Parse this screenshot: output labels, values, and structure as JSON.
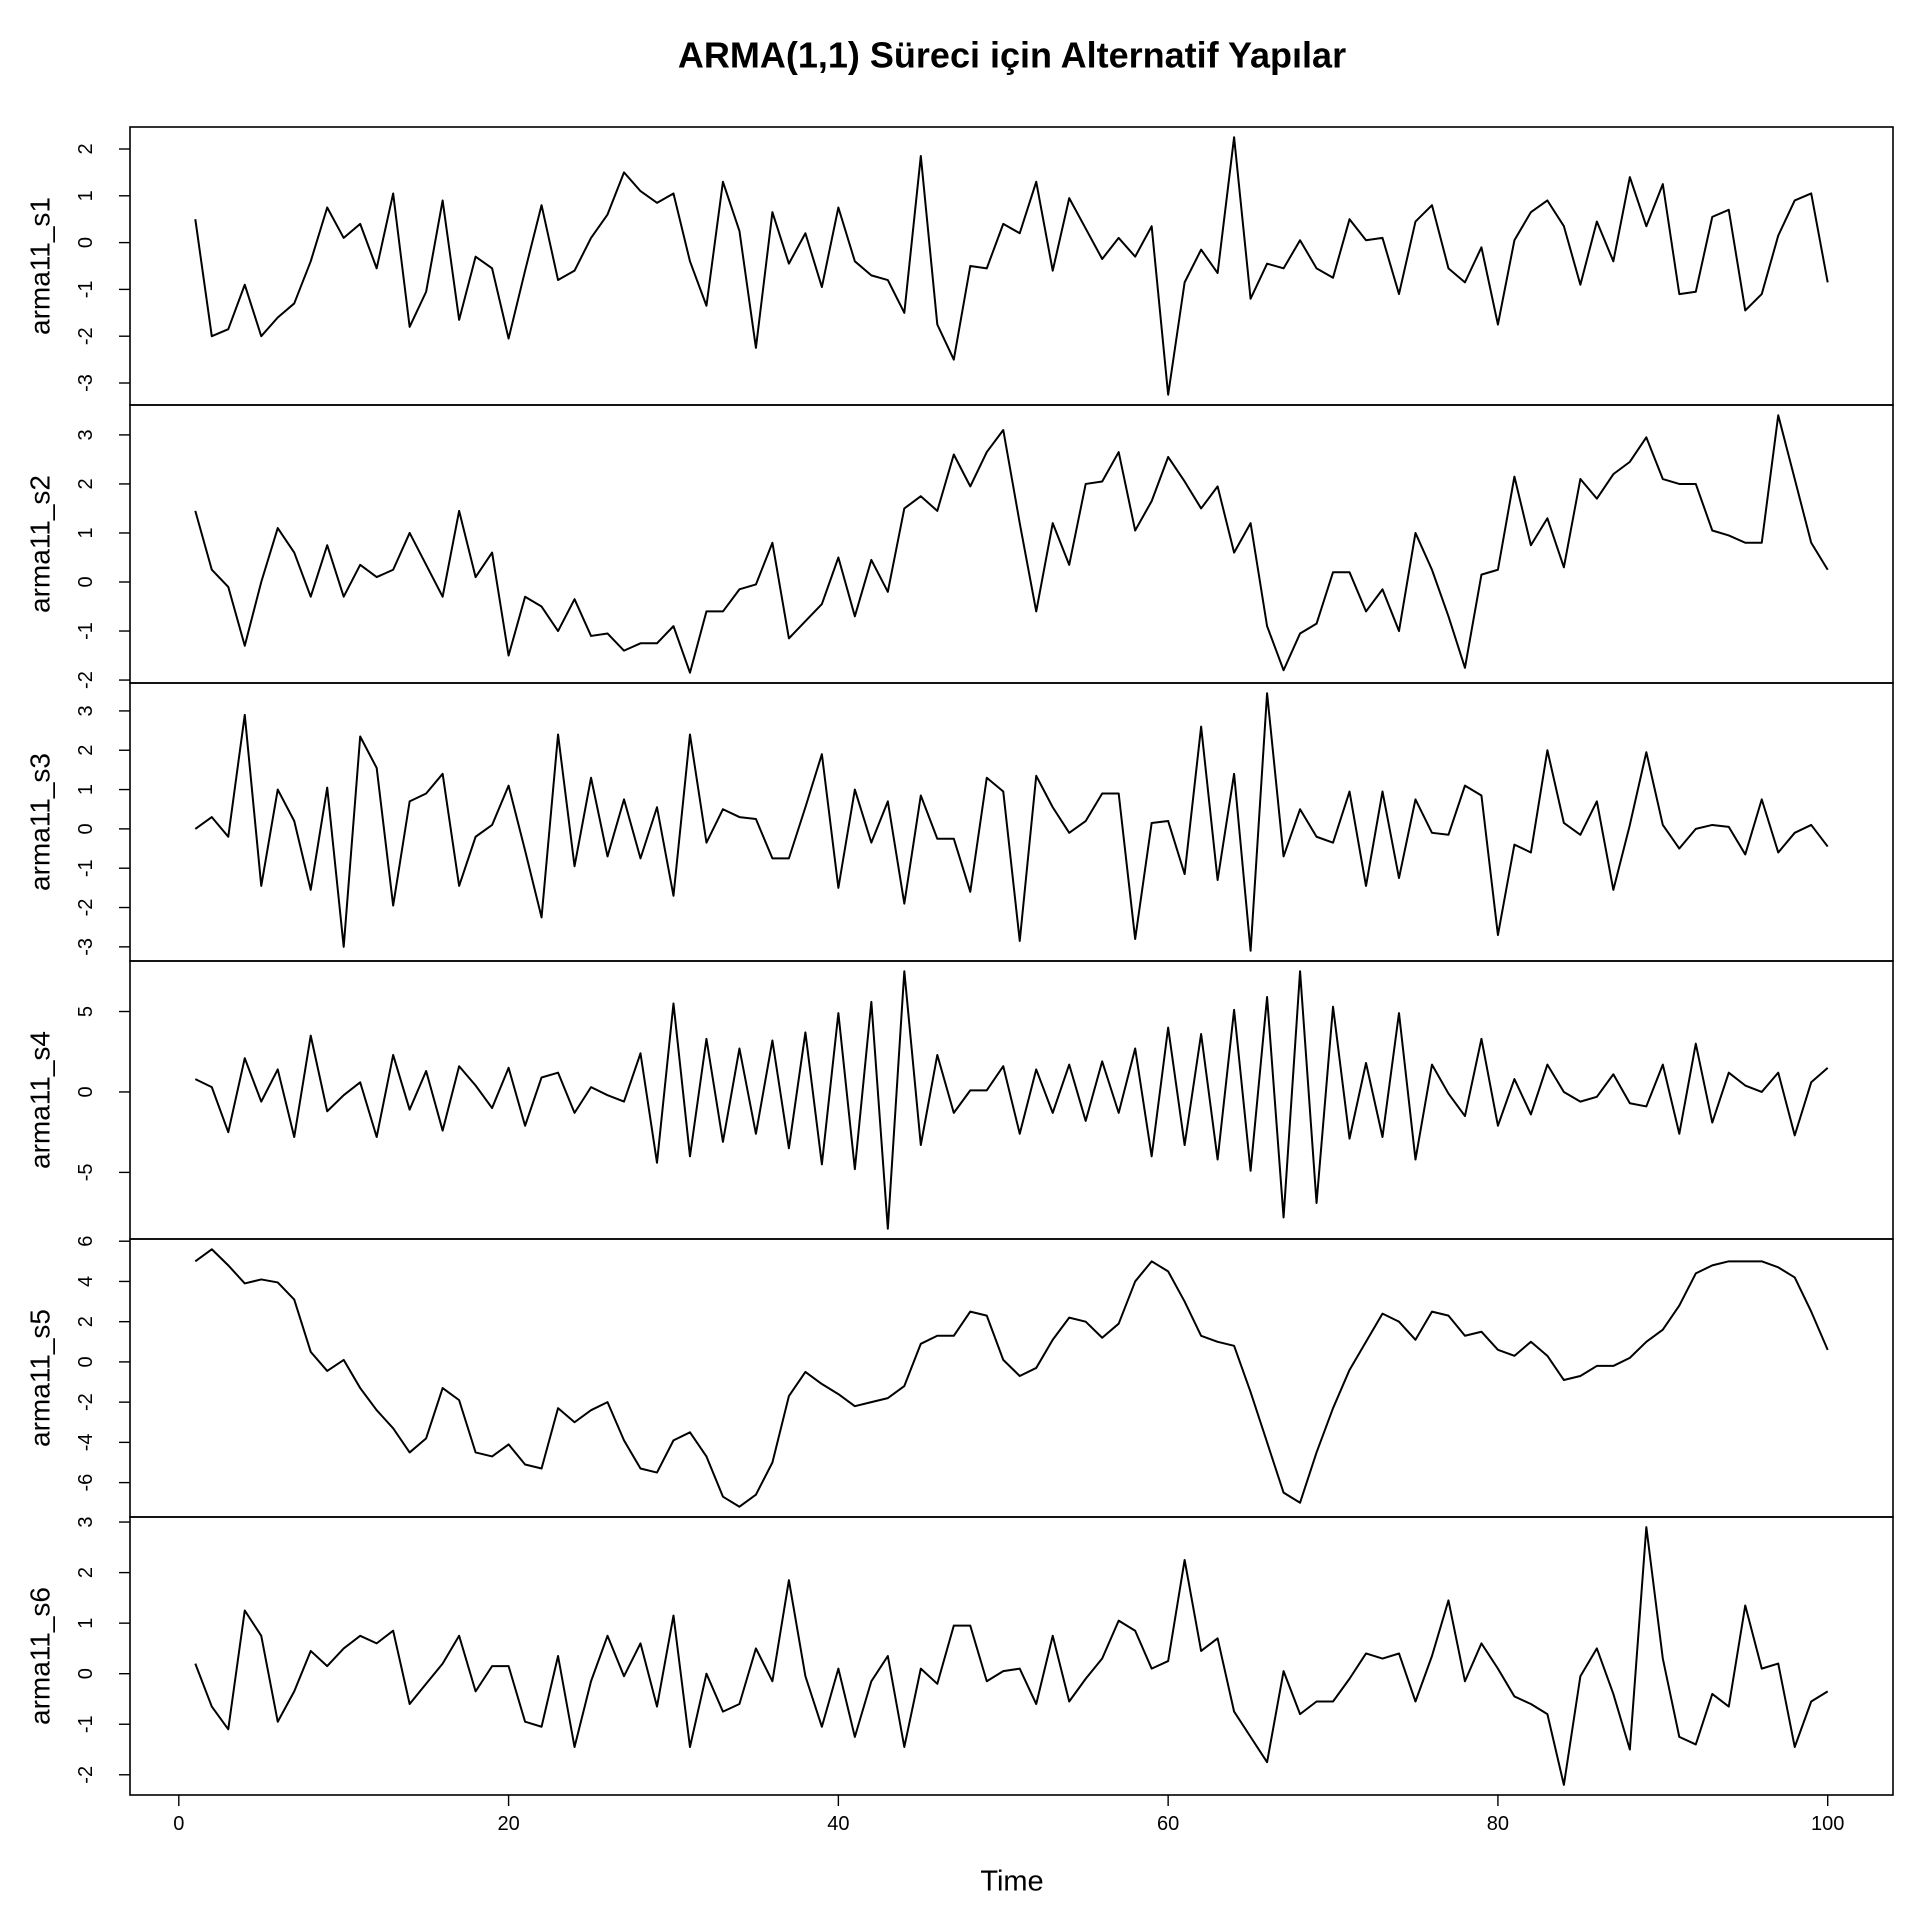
{
  "chart_data": {
    "type": "line",
    "title": "ARMA(1,1) Süreci için Alternatif Yapılar",
    "xlabel": "Time",
    "x": [
      1,
      2,
      3,
      4,
      5,
      6,
      7,
      8,
      9,
      10,
      11,
      12,
      13,
      14,
      15,
      16,
      17,
      18,
      19,
      20,
      21,
      22,
      23,
      24,
      25,
      26,
      27,
      28,
      29,
      30,
      31,
      32,
      33,
      34,
      35,
      36,
      37,
      38,
      39,
      40,
      41,
      42,
      43,
      44,
      45,
      46,
      47,
      48,
      49,
      50,
      51,
      52,
      53,
      54,
      55,
      56,
      57,
      58,
      59,
      60,
      61,
      62,
      63,
      64,
      65,
      66,
      67,
      68,
      69,
      70,
      71,
      72,
      73,
      74,
      75,
      76,
      77,
      78,
      79,
      80,
      81,
      82,
      83,
      84,
      85,
      86,
      87,
      88,
      89,
      90,
      91,
      92,
      93,
      94,
      95,
      96,
      97,
      98,
      99,
      100
    ],
    "xlim": [
      -2.96,
      103.96
    ],
    "xticks": [
      0,
      20,
      40,
      60,
      80,
      100
    ],
    "series": [
      {
        "name": "arma11_s1",
        "color": "#000000",
        "ylim": [
          -3.47,
          2.47
        ],
        "yticks": [
          -3,
          -2,
          -1,
          0,
          1,
          2
        ],
        "values": [
          0.5,
          -2.0,
          -1.85,
          -0.9,
          -2.0,
          -1.6,
          -1.3,
          -0.4,
          0.75,
          0.1,
          0.4,
          -0.55,
          1.05,
          -1.8,
          -1.05,
          0.9,
          -1.65,
          -0.3,
          -0.55,
          -2.05,
          -0.6,
          0.8,
          -0.8,
          -0.6,
          0.1,
          0.6,
          1.5,
          1.1,
          0.85,
          1.05,
          -0.4,
          -1.35,
          1.3,
          0.25,
          -2.25,
          0.65,
          -0.45,
          0.2,
          -0.95,
          0.75,
          -0.4,
          -0.7,
          -0.8,
          -1.5,
          1.85,
          -1.75,
          -2.5,
          -0.5,
          -0.55,
          0.4,
          0.2,
          1.3,
          -0.6,
          0.95,
          0.3,
          -0.35,
          0.1,
          -0.3,
          0.35,
          -3.25,
          -0.85,
          -0.15,
          -0.65,
          2.25,
          -1.2,
          -0.45,
          -0.55,
          0.05,
          -0.55,
          -0.75,
          0.5,
          0.05,
          0.1,
          -1.1,
          0.45,
          0.8,
          -0.55,
          -0.85,
          -0.1,
          -1.75,
          0.05,
          0.65,
          0.9,
          0.35,
          -0.9,
          0.45,
          -0.4,
          1.4,
          0.35,
          1.25,
          -1.1,
          -1.05,
          0.55,
          0.7,
          -1.45,
          -1.1,
          0.15,
          0.9,
          1.05,
          -0.85
        ]
      },
      {
        "name": "arma11_s2",
        "color": "#000000",
        "ylim": [
          -2.06,
          3.61
        ],
        "yticks": [
          -2,
          -1,
          0,
          1,
          2,
          3
        ],
        "values": [
          1.45,
          0.25,
          -0.1,
          -1.3,
          0.0,
          1.1,
          0.6,
          -0.3,
          0.75,
          -0.3,
          0.35,
          0.1,
          0.25,
          1.0,
          0.35,
          -0.3,
          1.45,
          0.1,
          0.6,
          -1.5,
          -0.3,
          -0.5,
          -1.0,
          -0.35,
          -1.1,
          -1.05,
          -1.4,
          -1.25,
          -1.25,
          -0.9,
          -1.85,
          -0.6,
          -0.6,
          -0.15,
          -0.05,
          0.8,
          -1.15,
          -0.8,
          -0.45,
          0.5,
          -0.7,
          0.45,
          -0.2,
          1.5,
          1.75,
          1.45,
          2.6,
          1.95,
          2.65,
          3.1,
          1.2,
          -0.6,
          1.2,
          0.35,
          2.0,
          2.05,
          2.65,
          1.05,
          1.65,
          2.55,
          2.05,
          1.5,
          1.95,
          0.6,
          1.2,
          -0.9,
          -1.8,
          -1.05,
          -0.85,
          0.2,
          0.2,
          -0.6,
          -0.15,
          -1.0,
          1.0,
          0.25,
          -0.7,
          -1.75,
          0.15,
          0.25,
          2.15,
          0.75,
          1.3,
          0.3,
          2.1,
          1.7,
          2.2,
          2.45,
          2.95,
          2.1,
          2.0,
          2.0,
          1.05,
          0.95,
          0.8,
          0.8,
          3.4,
          2.1,
          0.8,
          0.25
        ]
      },
      {
        "name": "arma11_s3",
        "color": "#000000",
        "ylim": [
          -3.36,
          3.71
        ],
        "yticks": [
          -3,
          -2,
          -1,
          0,
          1,
          2,
          3
        ],
        "values": [
          0.0,
          0.3,
          -0.2,
          2.9,
          -1.45,
          1.0,
          0.2,
          -1.55,
          1.05,
          -3.0,
          2.35,
          1.55,
          -1.95,
          0.7,
          0.9,
          1.4,
          -1.45,
          -0.2,
          0.1,
          1.1,
          -0.55,
          -2.25,
          2.4,
          -0.95,
          1.3,
          -0.7,
          0.75,
          -0.75,
          0.55,
          -1.7,
          2.4,
          -0.35,
          0.5,
          0.3,
          0.25,
          -0.75,
          -0.75,
          0.55,
          1.9,
          -1.5,
          1.0,
          -0.35,
          0.7,
          -1.9,
          0.85,
          -0.25,
          -0.25,
          -1.6,
          1.3,
          0.95,
          -2.85,
          1.35,
          0.55,
          -0.1,
          0.2,
          0.9,
          0.9,
          -2.8,
          0.15,
          0.2,
          -1.15,
          2.6,
          -1.3,
          1.4,
          -3.1,
          3.45,
          -0.7,
          0.5,
          -0.2,
          -0.35,
          0.95,
          -1.45,
          0.95,
          -1.25,
          0.75,
          -0.1,
          -0.15,
          1.1,
          0.85,
          -2.7,
          -0.4,
          -0.6,
          2.0,
          0.15,
          -0.15,
          0.7,
          -1.55,
          0.1,
          1.95,
          0.1,
          -0.5,
          0.0,
          0.1,
          0.05,
          -0.65,
          0.75,
          -0.6,
          -0.1,
          0.1,
          -0.45
        ]
      },
      {
        "name": "arma11_s4",
        "color": "#000000",
        "ylim": [
          -9.14,
          8.14
        ],
        "yticks": [
          -5,
          0,
          5
        ],
        "values": [
          0.8,
          0.3,
          -2.5,
          2.1,
          -0.6,
          1.4,
          -2.8,
          3.5,
          -1.2,
          -0.2,
          0.6,
          -2.8,
          2.3,
          -1.1,
          1.3,
          -2.4,
          1.6,
          0.4,
          -1.0,
          1.5,
          -2.1,
          0.9,
          1.2,
          -1.3,
          0.3,
          -0.2,
          -0.6,
          2.4,
          -4.4,
          5.5,
          -4.0,
          3.3,
          -3.1,
          2.7,
          -2.6,
          3.2,
          -3.5,
          3.7,
          -4.5,
          4.9,
          -4.8,
          5.6,
          -8.5,
          7.5,
          -3.3,
          2.3,
          -1.3,
          0.1,
          0.1,
          1.6,
          -2.6,
          1.4,
          -1.3,
          1.7,
          -1.8,
          1.9,
          -1.3,
          2.7,
          -4.0,
          4.0,
          -3.3,
          3.6,
          -4.2,
          5.1,
          -4.9,
          5.9,
          -7.8,
          7.5,
          -6.9,
          5.3,
          -2.9,
          1.8,
          -2.8,
          4.9,
          -4.2,
          1.7,
          -0.1,
          -1.5,
          3.3,
          -2.1,
          0.8,
          -1.4,
          1.7,
          0.0,
          -0.6,
          -0.3,
          1.1,
          -0.7,
          -0.9,
          1.7,
          -2.6,
          3.0,
          -1.9,
          1.2,
          0.4,
          0.0,
          1.2,
          -2.7,
          0.6,
          1.5
        ]
      },
      {
        "name": "arma11_s5",
        "color": "#000000",
        "ylim": [
          -7.71,
          6.11
        ],
        "yticks": [
          -6,
          -4,
          -2,
          0,
          2,
          4,
          6
        ],
        "values": [
          5.0,
          5.6,
          4.8,
          3.9,
          4.1,
          3.95,
          3.1,
          0.5,
          -0.45,
          0.1,
          -1.3,
          -2.4,
          -3.3,
          -4.5,
          -3.8,
          -1.3,
          -1.9,
          -4.5,
          -4.7,
          -4.1,
          -5.1,
          -5.3,
          -2.3,
          -3.0,
          -2.4,
          -2.0,
          -3.9,
          -5.3,
          -5.5,
          -3.9,
          -3.5,
          -4.7,
          -6.7,
          -7.2,
          -6.6,
          -5.0,
          -1.7,
          -0.5,
          -1.1,
          -1.6,
          -2.2,
          -2.0,
          -1.8,
          -1.2,
          0.9,
          1.3,
          1.3,
          2.5,
          2.3,
          0.1,
          -0.7,
          -0.3,
          1.1,
          2.2,
          2.0,
          1.2,
          1.9,
          4.0,
          5.0,
          4.5,
          3.0,
          1.3,
          1.0,
          0.8,
          -1.5,
          -4.0,
          -6.5,
          -7.0,
          -4.5,
          -2.3,
          -0.4,
          1.0,
          2.4,
          2.0,
          1.1,
          2.5,
          2.3,
          1.3,
          1.5,
          0.6,
          0.3,
          1.0,
          0.3,
          -0.9,
          -0.7,
          -0.2,
          -0.2,
          0.2,
          1.0,
          1.6,
          2.8,
          4.4,
          4.8,
          5.0,
          5.0,
          5.0,
          4.7,
          4.2,
          2.5,
          0.6
        ]
      },
      {
        "name": "arma11_s6",
        "color": "#000000",
        "ylim": [
          -2.4,
          3.1
        ],
        "yticks": [
          -2,
          -1,
          0,
          1,
          2,
          3
        ],
        "values": [
          0.2,
          -0.65,
          -1.1,
          1.25,
          0.75,
          -0.95,
          -0.35,
          0.45,
          0.15,
          0.5,
          0.75,
          0.6,
          0.85,
          -0.6,
          -0.2,
          0.2,
          0.75,
          -0.35,
          0.15,
          0.15,
          -0.95,
          -1.05,
          0.35,
          -1.45,
          -0.15,
          0.75,
          -0.05,
          0.6,
          -0.65,
          1.15,
          -1.45,
          0.0,
          -0.75,
          -0.6,
          0.5,
          -0.15,
          1.85,
          -0.05,
          -1.05,
          0.1,
          -1.25,
          -0.15,
          0.35,
          -1.45,
          0.1,
          -0.2,
          0.95,
          0.95,
          -0.15,
          0.05,
          0.1,
          -0.6,
          0.75,
          -0.55,
          -0.1,
          0.3,
          1.05,
          0.85,
          0.1,
          0.25,
          2.25,
          0.45,
          0.7,
          -0.75,
          -1.25,
          -1.75,
          0.05,
          -0.8,
          -0.55,
          -0.55,
          -0.1,
          0.4,
          0.3,
          0.4,
          -0.55,
          0.35,
          1.45,
          -0.15,
          0.6,
          0.1,
          -0.45,
          -0.6,
          -0.8,
          -2.2,
          -0.05,
          0.5,
          -0.4,
          -1.5,
          2.9,
          0.3,
          -1.25,
          -1.4,
          -0.4,
          -0.65,
          1.35,
          0.1,
          0.2,
          -1.45,
          -0.55,
          -0.35
        ]
      }
    ]
  }
}
